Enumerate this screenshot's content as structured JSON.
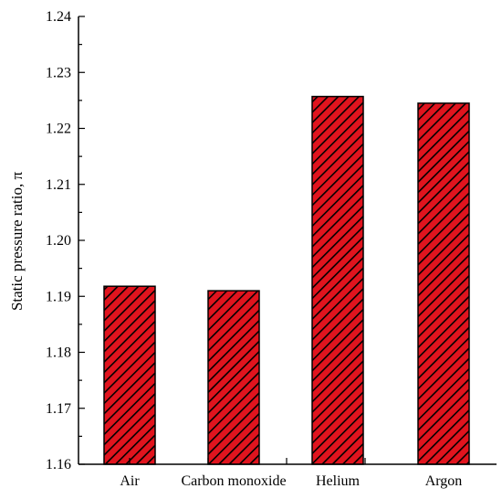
{
  "chart_data": {
    "type": "bar",
    "title": "",
    "xlabel": "",
    "ylabel": "Static pressure ratio, π",
    "categories": [
      "Air",
      "Carbon monoxide",
      "Helium",
      "Argon"
    ],
    "values": [
      1.1918,
      1.191,
      1.2257,
      1.2245
    ],
    "ylim": [
      1.16,
      1.24
    ],
    "yticks": [
      "1.16",
      "1.17",
      "1.18",
      "1.19",
      "1.20",
      "1.21",
      "1.22",
      "1.23",
      "1.24"
    ],
    "grid": false,
    "legend": "none",
    "bar_color": "#e0141e",
    "hatch_color": "#000000"
  }
}
